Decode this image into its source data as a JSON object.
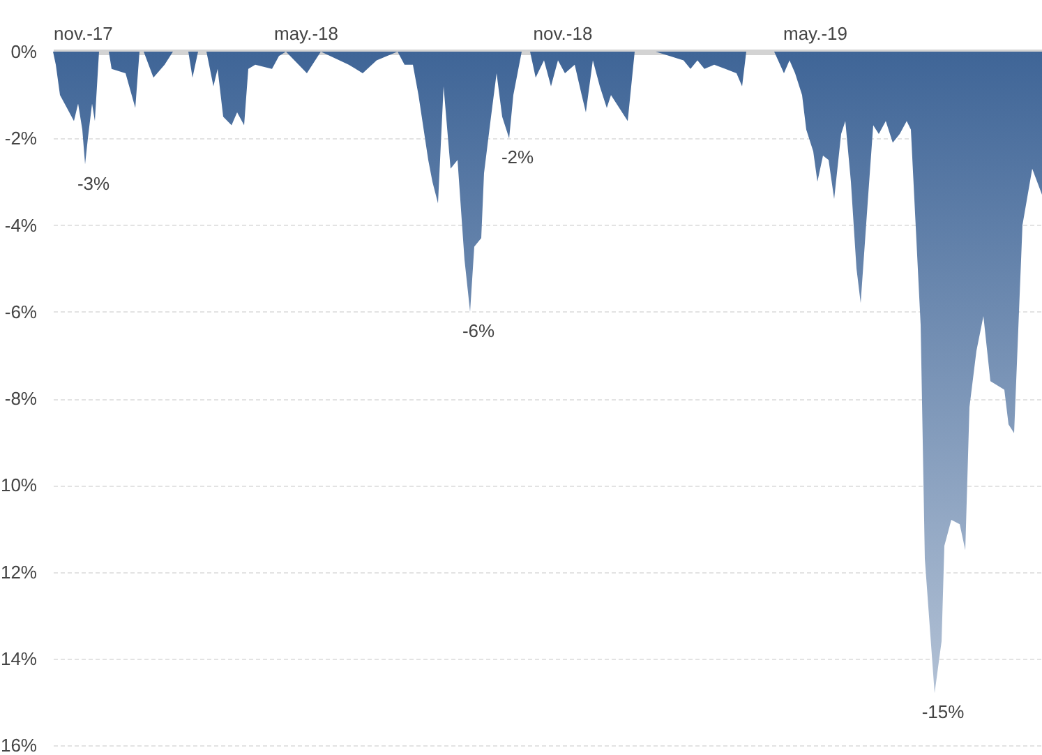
{
  "chart_data": {
    "type": "area",
    "x": [
      "2017-11-01",
      "2017-11-03",
      "2017-11-06",
      "2017-11-11",
      "2017-11-16",
      "2017-11-19",
      "2017-11-22",
      "2017-11-24",
      "2017-11-26",
      "2017-11-29",
      "2017-12-01",
      "2017-12-04",
      "2017-12-11",
      "2017-12-13",
      "2017-12-23",
      "2017-12-30",
      "2018-01-02",
      "2018-01-05",
      "2018-01-12",
      "2018-01-20",
      "2018-01-26",
      "2018-02-06",
      "2018-02-09",
      "2018-02-13",
      "2018-02-19",
      "2018-02-24",
      "2018-02-27",
      "2018-03-03",
      "2018-03-09",
      "2018-03-13",
      "2018-03-18",
      "2018-03-21",
      "2018-03-26",
      "2018-04-07",
      "2018-04-12",
      "2018-04-17",
      "2018-05-02",
      "2018-05-12",
      "2018-06-01",
      "2018-06-11",
      "2018-06-21",
      "2018-07-06",
      "2018-07-11",
      "2018-07-17",
      "2018-07-21",
      "2018-07-28",
      "2018-07-31",
      "2018-08-04",
      "2018-08-08",
      "2018-08-13",
      "2018-08-18",
      "2018-08-23",
      "2018-08-27",
      "2018-08-30",
      "2018-09-04",
      "2018-09-06",
      "2018-09-11",
      "2018-09-15",
      "2018-09-19",
      "2018-09-24",
      "2018-09-27",
      "2018-10-03",
      "2018-10-09",
      "2018-10-13",
      "2018-10-19",
      "2018-10-24",
      "2018-10-29",
      "2018-11-03",
      "2018-11-10",
      "2018-11-15",
      "2018-11-18",
      "2018-11-23",
      "2018-11-28",
      "2018-12-03",
      "2018-12-06",
      "2018-12-18",
      "2018-12-23",
      "2019-01-07",
      "2019-01-27",
      "2019-02-01",
      "2019-02-06",
      "2019-02-11",
      "2019-02-18",
      "2019-02-26",
      "2019-03-06",
      "2019-03-10",
      "2019-03-13",
      "2019-04-02",
      "2019-04-09",
      "2019-04-13",
      "2019-04-17",
      "2019-04-22",
      "2019-04-25",
      "2019-04-30",
      "2019-05-03",
      "2019-05-07",
      "2019-05-11",
      "2019-05-15",
      "2019-05-20",
      "2019-05-23",
      "2019-05-27",
      "2019-05-31",
      "2019-06-03",
      "2019-06-08",
      "2019-06-12",
      "2019-06-16",
      "2019-06-21",
      "2019-06-26",
      "2019-07-01",
      "2019-07-06",
      "2019-07-09",
      "2019-07-16",
      "2019-07-19",
      "2019-07-26",
      "2019-07-31",
      "2019-08-02",
      "2019-08-07",
      "2019-08-13",
      "2019-08-17",
      "2019-08-20",
      "2019-08-25",
      "2019-08-30",
      "2019-09-04",
      "2019-09-14",
      "2019-09-17",
      "2019-09-21",
      "2019-09-27",
      "2019-10-04",
      "2019-10-11"
    ],
    "series": [
      {
        "color": "#3f6597",
        "values": [
          0,
          -0.3,
          -1.0,
          -1.3,
          -1.6,
          -1.2,
          -1.8,
          -2.6,
          -2.0,
          -1.2,
          -1.6,
          0,
          0,
          -0.4,
          -0.5,
          -1.3,
          0,
          0,
          -0.6,
          -0.3,
          0,
          0,
          -0.6,
          0,
          0,
          -0.8,
          -0.4,
          -1.5,
          -1.7,
          -1.4,
          -1.7,
          -0.4,
          -0.3,
          -0.4,
          -0.1,
          0,
          -0.5,
          0,
          -0.3,
          -0.5,
          -0.2,
          0,
          -0.3,
          -0.3,
          -1.0,
          -2.5,
          -3.0,
          -3.5,
          -0.8,
          -2.7,
          -2.5,
          -4.8,
          -6.0,
          -4.5,
          -4.3,
          -2.8,
          -1.5,
          -0.5,
          -1.5,
          -2.0,
          -1.0,
          0,
          0,
          -0.6,
          -0.2,
          -0.8,
          -0.2,
          -0.5,
          -0.3,
          -1.0,
          -1.4,
          -0.2,
          -0.8,
          -1.3,
          -1.0,
          -1.6,
          0,
          0,
          -0.2,
          -0.4,
          -0.2,
          -0.4,
          -0.3,
          -0.4,
          -0.5,
          -0.8,
          0,
          0,
          -0.5,
          -0.2,
          -0.5,
          -1.0,
          -1.8,
          -2.3,
          -3.0,
          -2.4,
          -2.5,
          -3.4,
          -1.9,
          -1.6,
          -3.0,
          -5.0,
          -5.8,
          -3.5,
          -1.7,
          -1.9,
          -1.6,
          -2.1,
          -1.9,
          -1.6,
          -1.8,
          -6.3,
          -11.7,
          -14.8,
          -13.6,
          -11.4,
          -10.8,
          -10.9,
          -11.5,
          -8.2,
          -6.9,
          -6.1,
          -7.6,
          -7.8,
          -8.6,
          -8.8,
          -4.0,
          -2.7,
          -3.3
        ]
      }
    ],
    "xlim": [
      "2017-11-01",
      "2019-10-11"
    ],
    "xticks": [
      {
        "value": "2017-11-01",
        "label": "nov.-17"
      },
      {
        "value": "2018-05-01",
        "label": "may.-18"
      },
      {
        "value": "2018-11-01",
        "label": "nov.-18"
      },
      {
        "value": "2019-05-01",
        "label": "may.-19"
      }
    ],
    "ylim": [
      -16,
      0
    ],
    "yticks": [
      {
        "value": 0,
        "label": "0%"
      },
      {
        "value": -2,
        "label": "-2%"
      },
      {
        "value": -4,
        "label": "-4%"
      },
      {
        "value": -6,
        "label": "-6%"
      },
      {
        "value": -8,
        "label": "-8%"
      },
      {
        "value": -10,
        "label": "10%"
      },
      {
        "value": -12,
        "label": "12%"
      },
      {
        "value": -14,
        "label": "14%"
      },
      {
        "value": -16,
        "label": "16%"
      }
    ],
    "grid": "y",
    "annotations": [
      {
        "text": "-3%",
        "x": "2017-11-24",
        "y": -2.6
      },
      {
        "text": "-6%",
        "x": "2018-08-27",
        "y": -6.0
      },
      {
        "text": "-2%",
        "x": "2018-09-24",
        "y": -2.0
      },
      {
        "text": "-15%",
        "x": "2019-07-26",
        "y": -14.8
      }
    ]
  }
}
